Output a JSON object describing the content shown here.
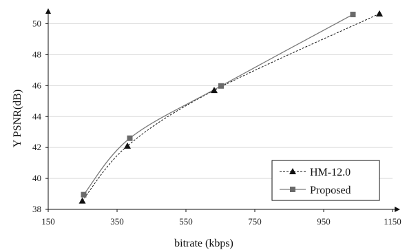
{
  "chart_data": {
    "type": "line",
    "xlabel": "bitrate (kbps)",
    "ylabel": "Y PSNR(dB)",
    "xlim": [
      150,
      1150
    ],
    "ylim": [
      38,
      51
    ],
    "xticks": [
      150,
      350,
      550,
      750,
      950,
      1150
    ],
    "yticks": [
      38,
      40,
      42,
      44,
      46,
      48,
      50
    ],
    "grid": "horizontal",
    "legend": "bottom-right",
    "series": [
      {
        "name": "HM-12.0",
        "marker": "triangle",
        "line": "dashed",
        "color": "#111111",
        "x": [
          249,
          380,
          632,
          1112
        ],
        "y": [
          38.55,
          42.1,
          45.7,
          50.65
        ]
      },
      {
        "name": "Proposed",
        "marker": "square",
        "line": "solid",
        "color": "#7a7a7a",
        "x": [
          253,
          387,
          652,
          1035
        ],
        "y": [
          38.95,
          42.6,
          45.98,
          50.6
        ]
      }
    ]
  }
}
